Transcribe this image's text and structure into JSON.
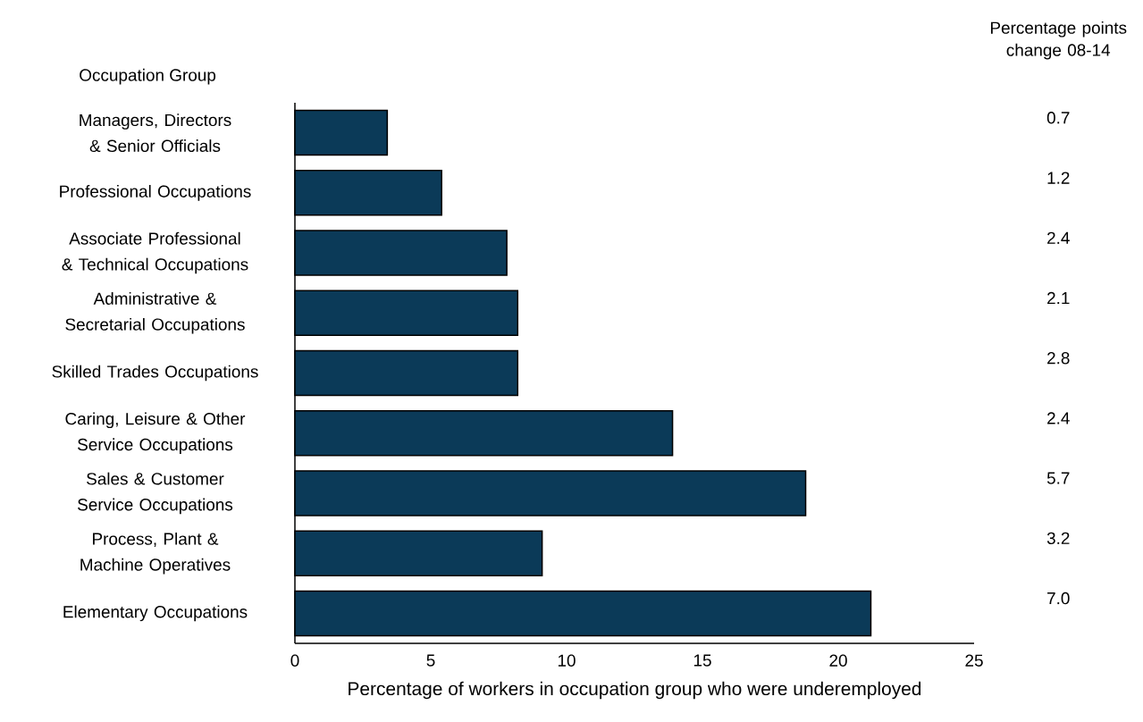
{
  "chart_data": {
    "type": "bar",
    "orientation": "horizontal",
    "ylabel": "Occupation Group",
    "xlabel": "Percentage of workers in occupation group who were underemployed",
    "categories": [
      "Managers, Directors & Senior Officials",
      "Professional Occupations",
      "Associate Professional & Technical Occupations",
      "Administrative & Secretarial Occupations",
      "Skilled Trades Occupations",
      "Caring, Leisure & Other Service Occupations",
      "Sales & Customer Service Occupations",
      "Process, Plant & Machine Operatives",
      "Elementary Occupations"
    ],
    "values": [
      3.4,
      5.4,
      7.8,
      8.2,
      8.2,
      13.9,
      18.8,
      9.1,
      21.2
    ],
    "color": "#0b3a58",
    "xlim": [
      0,
      25
    ],
    "xticks": [
      0,
      5,
      10,
      15,
      20,
      25
    ],
    "grid": false,
    "annotations": [
      "Percentage points change 08-14",
      "0.7",
      "1.2",
      "2.4",
      "2.1",
      "2.8",
      "2.4",
      "5.7",
      "3.2",
      "7.0"
    ]
  }
}
